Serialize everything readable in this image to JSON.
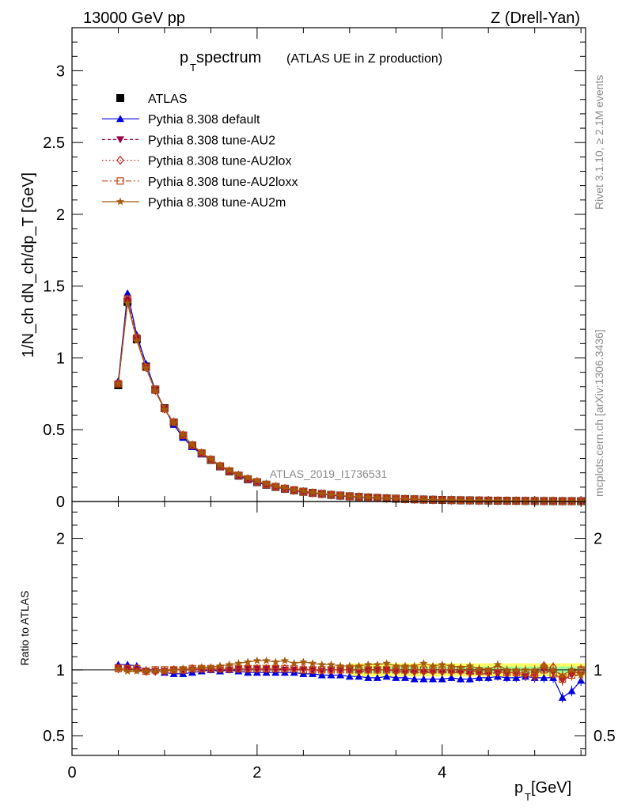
{
  "header": {
    "left": "13000 GeV pp",
    "right": "Z (Drell-Yan)"
  },
  "side_labels": {
    "rivet": "Rivet 3.1.10, ≥ 2.1M events",
    "mcplots": "mcplots.cern.ch [arXiv:1306.3436]"
  },
  "colors": {
    "data": "#000000",
    "default": "#0000dd",
    "au2": "#9b0046",
    "au2lox": "#c4201c",
    "au2loxx": "#c1420c",
    "au2m": "#a55a0a",
    "band_green": "#9aff9a",
    "band_yellow": "#ffff66"
  },
  "chart_data": [
    {
      "type": "line",
      "panel": "main",
      "title_main": "p",
      "title_sub": "T",
      "title_rest": " spectrum",
      "title_note": "(ATLAS UE in Z production)",
      "ylabel": "1/N_ch dN_ch/dp_T [GeV]",
      "watermark": "ATLAS_2019_I1736531",
      "xlim": [
        0,
        5.55
      ],
      "ylim": [
        0,
        3.3
      ],
      "yticks": [
        0,
        0.5,
        1,
        1.5,
        2,
        2.5,
        3
      ],
      "ytick_labels": [
        "0",
        "0.5",
        "1",
        "1.5",
        "2",
        "2.5",
        "3"
      ],
      "grid": false,
      "legend_position": "top-left",
      "x": [
        0.5,
        0.6,
        0.7,
        0.8,
        0.9,
        1.0,
        1.1,
        1.2,
        1.3,
        1.4,
        1.5,
        1.6,
        1.7,
        1.8,
        1.9,
        2.0,
        2.1,
        2.2,
        2.3,
        2.4,
        2.5,
        2.6,
        2.7,
        2.8,
        2.9,
        3.0,
        3.1,
        3.2,
        3.3,
        3.4,
        3.5,
        3.6,
        3.7,
        3.8,
        3.9,
        4.0,
        4.1,
        4.2,
        4.3,
        4.4,
        4.5,
        4.6,
        4.7,
        4.8,
        4.9,
        5.0,
        5.1,
        5.2,
        5.3,
        5.4,
        5.5
      ],
      "series": [
        {
          "name": "ATLAS",
          "key": "data",
          "values": [
            0.81,
            1.39,
            1.13,
            0.94,
            0.78,
            0.65,
            0.55,
            0.46,
            0.39,
            0.335,
            0.29,
            0.245,
            0.21,
            0.18,
            0.155,
            0.135,
            0.117,
            0.102,
            0.089,
            0.078,
            0.068,
            0.06,
            0.053,
            0.046,
            0.041,
            0.036,
            0.032,
            0.028,
            0.025,
            0.022,
            0.0195,
            0.0173,
            0.0154,
            0.0137,
            0.0122,
            0.0109,
            0.0097,
            0.0087,
            0.0078,
            0.007,
            0.0063,
            0.0056,
            0.0051,
            0.0046,
            0.0041,
            0.0037,
            0.0034,
            0.0031,
            0.0028,
            0.0025,
            0.0023
          ]
        },
        {
          "name": "Pythia 8.308 default",
          "key": "default",
          "values": [
            0.84,
            1.45,
            1.16,
            0.96,
            0.78,
            0.645,
            0.535,
            0.445,
            0.38,
            0.33,
            0.29,
            0.243,
            0.21,
            0.178,
            0.152,
            0.132,
            0.115,
            0.1,
            0.087,
            0.076,
            0.066,
            0.058,
            0.051,
            0.044,
            0.039,
            0.034,
            0.03,
            0.026,
            0.023,
            0.021,
            0.0183,
            0.0162,
            0.0143,
            0.0128,
            0.0114,
            0.0102,
            0.0091,
            0.0081,
            0.0073,
            0.0066,
            0.0059,
            0.0053,
            0.0048,
            0.0043,
            0.0039,
            0.0035,
            0.0032,
            0.0029,
            0.0022,
            0.0021,
            0.0021
          ]
        },
        {
          "name": "Pythia 8.308 tune-AU2",
          "key": "au2",
          "values": [
            0.82,
            1.4,
            1.13,
            0.93,
            0.77,
            0.64,
            0.55,
            0.46,
            0.39,
            0.335,
            0.29,
            0.245,
            0.21,
            0.181,
            0.156,
            0.136,
            0.118,
            0.103,
            0.089,
            0.078,
            0.068,
            0.06,
            0.052,
            0.046,
            0.041,
            0.036,
            0.031,
            0.028,
            0.025,
            0.022,
            0.0192,
            0.017,
            0.0151,
            0.0134,
            0.012,
            0.0107,
            0.0095,
            0.0085,
            0.0076,
            0.0068,
            0.0061,
            0.0055,
            0.005,
            0.0045,
            0.0039,
            0.0036,
            0.0034,
            0.0031,
            0.0026,
            0.0024,
            0.0022
          ]
        },
        {
          "name": "Pythia 8.308 tune-AU2lox",
          "key": "au2lox",
          "values": [
            0.82,
            1.41,
            1.14,
            0.935,
            0.775,
            0.645,
            0.553,
            0.463,
            0.393,
            0.338,
            0.292,
            0.247,
            0.212,
            0.182,
            0.157,
            0.137,
            0.118,
            0.103,
            0.09,
            0.079,
            0.069,
            0.06,
            0.053,
            0.046,
            0.041,
            0.036,
            0.032,
            0.028,
            0.025,
            0.022,
            0.0194,
            0.0172,
            0.0153,
            0.0136,
            0.0121,
            0.0108,
            0.0096,
            0.0086,
            0.0077,
            0.0069,
            0.0062,
            0.0055,
            0.005,
            0.0045,
            0.004,
            0.0035,
            0.0035,
            0.0032,
            0.0026,
            0.0026,
            0.0023
          ]
        },
        {
          "name": "Pythia 8.308 tune-AU2loxx",
          "key": "au2loxx",
          "values": [
            0.82,
            1.41,
            1.14,
            0.935,
            0.78,
            0.648,
            0.552,
            0.462,
            0.392,
            0.337,
            0.292,
            0.247,
            0.212,
            0.182,
            0.157,
            0.137,
            0.118,
            0.103,
            0.09,
            0.079,
            0.068,
            0.06,
            0.053,
            0.046,
            0.041,
            0.036,
            0.032,
            0.028,
            0.025,
            0.022,
            0.0195,
            0.0173,
            0.0154,
            0.0137,
            0.0122,
            0.0109,
            0.0097,
            0.0087,
            0.0077,
            0.0069,
            0.0062,
            0.0056,
            0.005,
            0.0045,
            0.004,
            0.0036,
            0.0034,
            0.003,
            0.0026,
            0.0024,
            0.0023
          ]
        },
        {
          "name": "Pythia 8.308 tune-AU2m",
          "key": "au2m",
          "values": [
            0.82,
            1.38,
            1.12,
            0.93,
            0.77,
            0.64,
            0.55,
            0.465,
            0.395,
            0.342,
            0.296,
            0.252,
            0.218,
            0.189,
            0.164,
            0.144,
            0.125,
            0.108,
            0.095,
            0.082,
            0.072,
            0.063,
            0.055,
            0.048,
            0.042,
            0.037,
            0.033,
            0.029,
            0.026,
            0.023,
            0.02,
            0.0178,
            0.0158,
            0.0144,
            0.0126,
            0.0113,
            0.01,
            0.0089,
            0.008,
            0.0071,
            0.0063,
            0.0058,
            0.0051,
            0.0046,
            0.0041,
            0.0037,
            0.0035,
            0.0031,
            0.0027,
            0.0025,
            0.0022
          ]
        }
      ]
    },
    {
      "type": "line",
      "panel": "ratio",
      "ylabel": "Ratio to ATLAS",
      "xlabel_main": "p",
      "xlabel_sub": "T",
      "xlabel_rest": " [GeV]",
      "xlim": [
        0,
        5.55
      ],
      "ylim": [
        0.35,
        2.28
      ],
      "xticks": [
        0,
        2,
        4
      ],
      "xtick_labels": [
        "0",
        "2",
        "4"
      ],
      "yticks": [
        0.5,
        1,
        2
      ],
      "ytick_labels": [
        "0.5",
        "1",
        "2"
      ],
      "band_start_x": 3.0,
      "x": [
        0.5,
        0.6,
        0.7,
        0.8,
        0.9,
        1.0,
        1.1,
        1.2,
        1.3,
        1.4,
        1.5,
        1.6,
        1.7,
        1.8,
        1.9,
        2.0,
        2.1,
        2.2,
        2.3,
        2.4,
        2.5,
        2.6,
        2.7,
        2.8,
        2.9,
        3.0,
        3.1,
        3.2,
        3.3,
        3.4,
        3.5,
        3.6,
        3.7,
        3.8,
        3.9,
        4.0,
        4.1,
        4.2,
        4.3,
        4.4,
        4.5,
        4.6,
        4.7,
        4.8,
        4.9,
        5.0,
        5.1,
        5.2,
        5.3,
        5.4,
        5.5
      ],
      "series": [
        {
          "name": "Pythia 8.308 default",
          "key": "default",
          "values": [
            1.04,
            1.04,
            1.03,
            1.0,
            1.0,
            0.98,
            0.97,
            0.97,
            0.98,
            0.99,
            1.0,
            0.99,
            1.0,
            0.99,
            0.98,
            0.98,
            0.98,
            0.98,
            0.98,
            0.98,
            0.97,
            0.97,
            0.96,
            0.96,
            0.96,
            0.95,
            0.95,
            0.94,
            0.94,
            0.95,
            0.94,
            0.94,
            0.93,
            0.93,
            0.93,
            0.93,
            0.94,
            0.93,
            0.93,
            0.94,
            0.94,
            0.95,
            0.94,
            0.94,
            0.95,
            0.94,
            0.94,
            0.94,
            0.79,
            0.84,
            0.92
          ]
        },
        {
          "name": "Pythia 8.308 tune-AU2",
          "key": "au2",
          "values": [
            1.02,
            1.01,
            1.0,
            0.99,
            0.99,
            0.99,
            1.0,
            1.0,
            1.0,
            1.0,
            1.0,
            1.0,
            1.0,
            1.01,
            1.01,
            1.01,
            1.01,
            1.01,
            1.0,
            1.0,
            1.0,
            1.0,
            0.99,
            1.0,
            1.0,
            1.0,
            0.98,
            1.0,
            1.0,
            1.0,
            0.99,
            0.98,
            0.98,
            0.98,
            0.98,
            0.98,
            0.98,
            0.98,
            0.97,
            0.97,
            0.97,
            0.98,
            0.98,
            0.98,
            0.95,
            0.97,
            1.0,
            0.98,
            0.92,
            0.96,
            0.96
          ]
        },
        {
          "name": "Pythia 8.308 tune-AU2lox",
          "key": "au2lox",
          "values": [
            1.01,
            1.01,
            1.01,
            0.99,
            0.99,
            0.99,
            1.0,
            1.0,
            1.01,
            1.01,
            1.01,
            1.01,
            1.01,
            1.01,
            1.01,
            1.01,
            1.01,
            1.01,
            1.01,
            1.01,
            1.01,
            1.0,
            1.0,
            1.0,
            1.0,
            1.0,
            1.0,
            1.0,
            1.0,
            1.0,
            0.99,
            0.99,
            0.99,
            0.99,
            0.99,
            0.99,
            0.99,
            0.99,
            0.99,
            0.99,
            0.98,
            0.98,
            0.98,
            0.98,
            0.97,
            0.95,
            1.03,
            1.02,
            0.94,
            0.99,
            1.0
          ]
        },
        {
          "name": "Pythia 8.308 tune-AU2loxx",
          "key": "au2loxx",
          "values": [
            1.01,
            1.01,
            1.01,
            0.99,
            1.0,
            1.0,
            1.0,
            1.0,
            1.01,
            1.01,
            1.01,
            1.01,
            1.01,
            1.01,
            1.01,
            1.01,
            1.01,
            1.01,
            1.01,
            1.01,
            1.0,
            1.0,
            1.0,
            1.0,
            1.0,
            1.0,
            1.0,
            1.0,
            1.0,
            1.0,
            1.0,
            1.0,
            1.0,
            1.0,
            1.0,
            1.0,
            1.0,
            1.0,
            0.99,
            0.99,
            0.99,
            1.0,
            0.98,
            0.98,
            0.98,
            0.97,
            1.0,
            0.97,
            0.93,
            0.96,
            1.0
          ]
        },
        {
          "name": "Pythia 8.308 tune-AU2m",
          "key": "au2m",
          "values": [
            1.01,
            0.99,
            0.99,
            0.99,
            0.99,
            0.99,
            1.0,
            1.01,
            1.01,
            1.02,
            1.02,
            1.03,
            1.04,
            1.05,
            1.06,
            1.07,
            1.07,
            1.06,
            1.07,
            1.05,
            1.06,
            1.05,
            1.04,
            1.04,
            1.03,
            1.03,
            1.03,
            1.04,
            1.04,
            1.05,
            1.03,
            1.03,
            1.03,
            1.05,
            1.03,
            1.04,
            1.03,
            1.02,
            1.03,
            1.01,
            1.0,
            1.04,
            1.0,
            1.0,
            1.0,
            1.0,
            1.03,
            1.0,
            0.96,
            1.0,
            0.96
          ]
        }
      ]
    }
  ]
}
